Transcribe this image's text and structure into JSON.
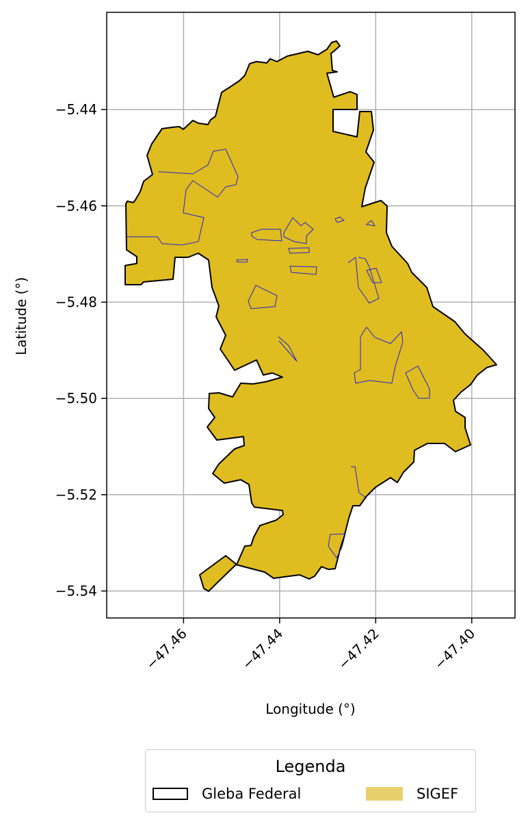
{
  "chart_data": {
    "type": "map",
    "xlabel": "Longitude (°)",
    "ylabel": "Latitude (°)",
    "xlim": [
      -47.476,
      -47.391
    ],
    "ylim": [
      -5.5456,
      -5.4198
    ],
    "xticks": [
      -47.46,
      -47.44,
      -47.42,
      -47.4
    ],
    "xtick_labels": [
      "−47.46",
      "−47.44",
      "−47.42",
      "−47.40"
    ],
    "yticks": [
      -5.44,
      -5.46,
      -5.48,
      -5.5,
      -5.52,
      -5.54
    ],
    "ytick_labels": [
      "−5.44",
      "−5.46",
      "−5.48",
      "−5.50",
      "−5.52",
      "−5.54"
    ],
    "grid": true,
    "series": [
      {
        "name": "Gleba Federal",
        "edgecolor": "#000000",
        "facecolor": "none"
      },
      {
        "name": "SIGEF",
        "facecolor": "#dfbc20",
        "edgecolor": "#2222cc"
      }
    ]
  },
  "legend": {
    "title": "Legenda",
    "placement": "bottom-center",
    "items": [
      {
        "label": "Gleba Federal"
      },
      {
        "label": "SIGEF",
        "color": "#e8d06e"
      }
    ]
  }
}
